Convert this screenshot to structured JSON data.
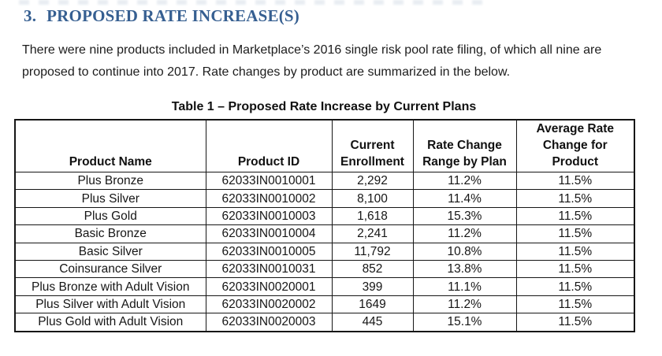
{
  "section": {
    "number": "3.",
    "title": "PROPOSED RATE INCREASE(S)",
    "paragraph": "There were nine products included in Marketplace’s 2016 single risk pool rate filing, of which all nine are proposed to continue into 2017. Rate changes by product are summarized in the below."
  },
  "table": {
    "title": "Table 1 – Proposed Rate Increase by Current Plans",
    "headers": [
      "Product Name",
      "Product ID",
      "Current Enrollment",
      "Rate Change Range by Plan",
      "Average Rate Change for Product"
    ],
    "rows": [
      {
        "name": "Plus Bronze",
        "id": "62033IN0010001",
        "enrollment": "2,292",
        "range": "11.2%",
        "avg": "11.5%"
      },
      {
        "name": "Plus Silver",
        "id": "62033IN0010002",
        "enrollment": "8,100",
        "range": "11.4%",
        "avg": "11.5%"
      },
      {
        "name": "Plus Gold",
        "id": "62033IN0010003",
        "enrollment": "1,618",
        "range": "15.3%",
        "avg": "11.5%"
      },
      {
        "name": "Basic Bronze",
        "id": "62033IN0010004",
        "enrollment": "2,241",
        "range": "11.2%",
        "avg": "11.5%"
      },
      {
        "name": "Basic Silver",
        "id": "62033IN0010005",
        "enrollment": "11,792",
        "range": "10.8%",
        "avg": "11.5%"
      },
      {
        "name": "Coinsurance Silver",
        "id": "62033IN0010031",
        "enrollment": "852",
        "range": "13.8%",
        "avg": "11.5%"
      },
      {
        "name": "Plus Bronze with Adult Vision",
        "id": "62033IN0020001",
        "enrollment": "399",
        "range": "11.1%",
        "avg": "11.5%"
      },
      {
        "name": "Plus Silver with Adult Vision",
        "id": "62033IN0020002",
        "enrollment": "1649",
        "range": "11.2%",
        "avg": "11.5%"
      },
      {
        "name": "Plus Gold with Adult Vision",
        "id": "62033IN0020003",
        "enrollment": "445",
        "range": "15.1%",
        "avg": "11.5%"
      }
    ]
  },
  "colors": {
    "heading_blue": "#365F91",
    "body_text": "#1c1c1c",
    "table_border": "#161616"
  }
}
